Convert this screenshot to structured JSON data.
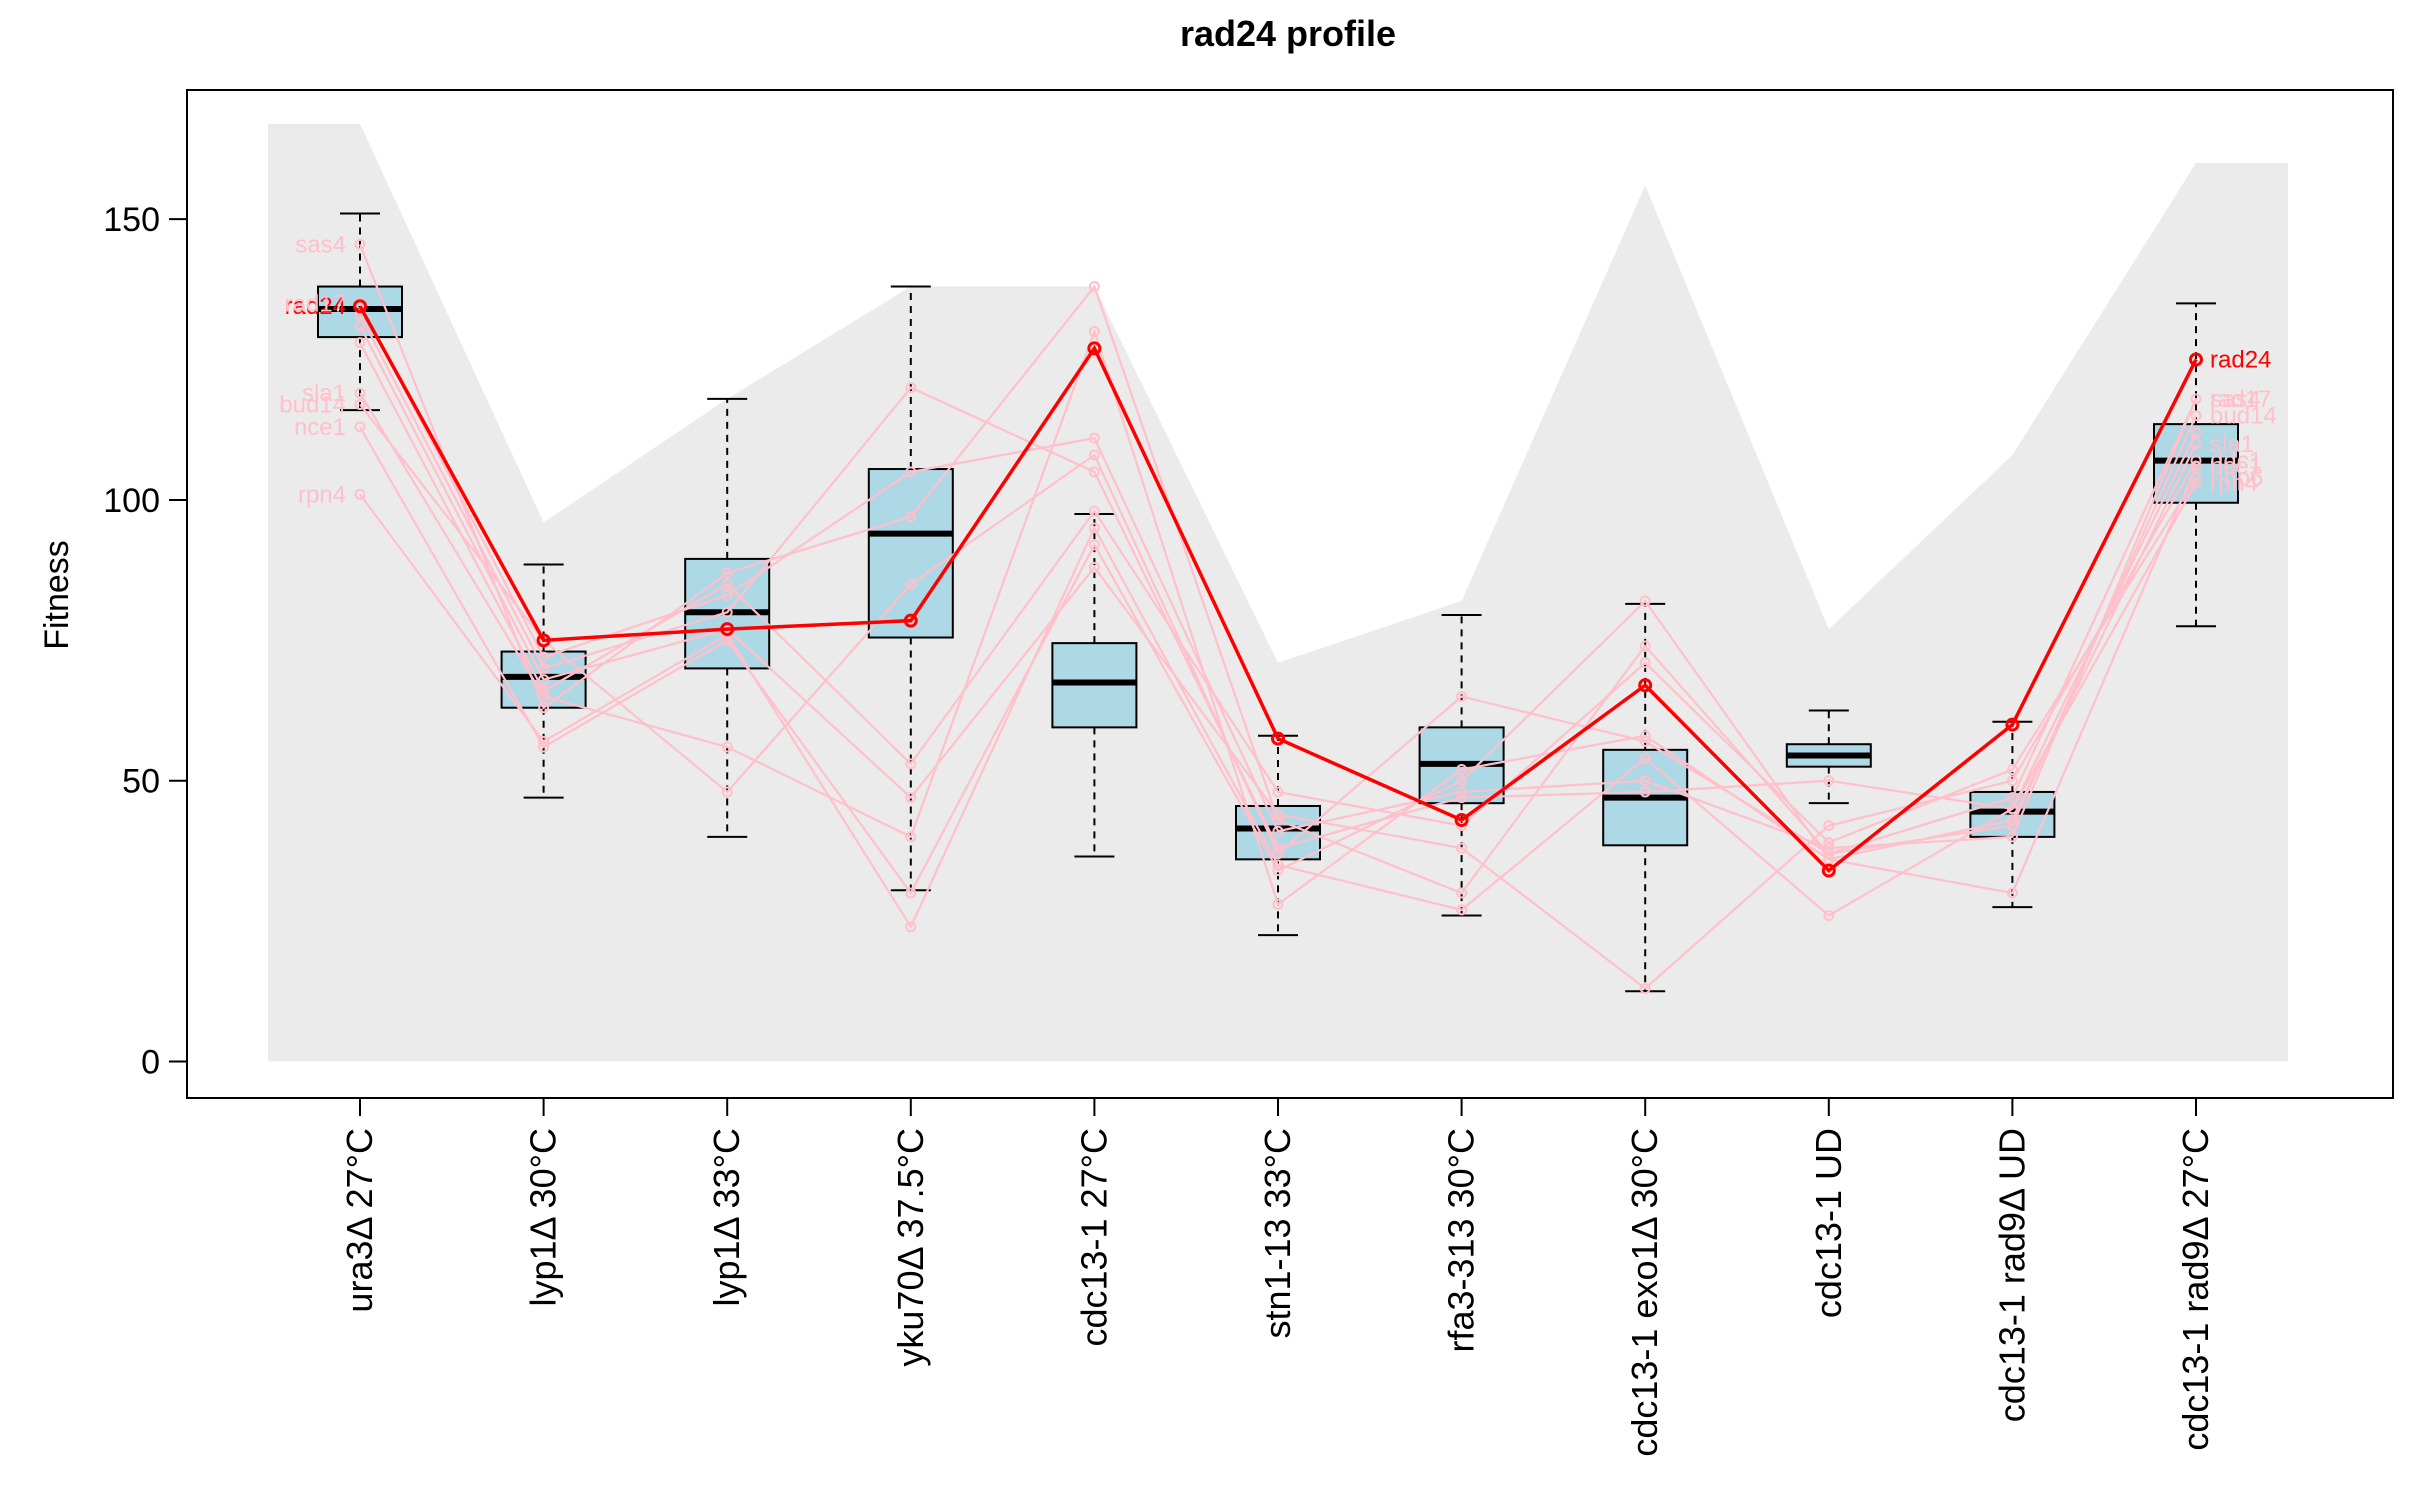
{
  "chart_data": {
    "type": "box",
    "title": "rad24 profile",
    "ylabel": "Fitness",
    "xlabel": "",
    "ylim": [
      -6.5,
      173
    ],
    "yticks": [
      0,
      50,
      100,
      150
    ],
    "categories": [
      "ura3Δ 27°C",
      "lyp1Δ 30°C",
      "lyp1Δ 33°C",
      "yku70Δ 37.5°C",
      "cdc13-1 27°C",
      "stn1-13 33°C",
      "rfa3-313 30°C",
      "cdc13-1 exo1Δ 30°C",
      "cdc13-1 UD",
      "cdc13-1 rad9Δ UD",
      "cdc13-1 rad9Δ 27°C"
    ],
    "envelope_max": [
      167,
      96,
      118,
      138,
      138,
      71,
      82,
      156,
      77,
      108,
      160
    ],
    "boxes": [
      {
        "whisker_low": 116,
        "q1": 129,
        "median": 134,
        "q3": 138,
        "whisker_high": 151
      },
      {
        "whisker_low": 47,
        "q1": 63,
        "median": 68.5,
        "q3": 73,
        "whisker_high": 88.5
      },
      {
        "whisker_low": 40,
        "q1": 70,
        "median": 80,
        "q3": 89.5,
        "whisker_high": 118
      },
      {
        "whisker_low": 30.5,
        "q1": 75.5,
        "median": 94,
        "q3": 105.5,
        "whisker_high": 138
      },
      {
        "whisker_low": 36.5,
        "q1": 59.5,
        "median": 67.5,
        "q3": 74.5,
        "whisker_high": 97.5
      },
      {
        "whisker_low": 22.5,
        "q1": 36,
        "median": 41.5,
        "q3": 45.5,
        "whisker_high": 58
      },
      {
        "whisker_low": 26,
        "q1": 46,
        "median": 53,
        "q3": 59.5,
        "whisker_high": 79.5
      },
      {
        "whisker_low": 12.5,
        "q1": 38.5,
        "median": 47,
        "q3": 55.5,
        "whisker_high": 81.5
      },
      {
        "whisker_low": 46,
        "q1": 52.5,
        "median": 54.5,
        "q3": 56.5,
        "whisker_high": 62.5
      },
      {
        "whisker_low": 27.5,
        "q1": 40,
        "median": 44.5,
        "q3": 48,
        "whisker_high": 60.5
      },
      {
        "whisker_low": 77.5,
        "q1": 99.5,
        "median": 107,
        "q3": 113.5,
        "whisker_high": 135
      }
    ],
    "highlight": {
      "name": "rad24",
      "color": "#ff0000",
      "values": [
        134.5,
        75,
        77,
        78.5,
        127,
        57.5,
        43,
        67,
        34,
        60,
        125
      ]
    },
    "neighbors": {
      "color": "#ffc0cb",
      "series": [
        {
          "name": "sas4",
          "values": [
            145.5,
            63,
            87,
            97,
            138,
            43,
            30,
            74,
            37,
            47,
            118
          ]
        },
        {
          "name": "rad17",
          "values": [
            135,
            72,
            83,
            105,
            111,
            41,
            48,
            50,
            38,
            40,
            118
          ]
        },
        {
          "name": "rad17",
          "values": [
            133,
            70,
            80,
            120,
            105,
            38,
            47,
            48,
            50,
            45,
            112
          ]
        },
        {
          "name": "sla1",
          "values": [
            119,
            65,
            56,
            40,
            130,
            28,
            52,
            58,
            36,
            43,
            110
          ]
        },
        {
          "name": "bud14",
          "values": [
            117,
            75,
            48,
            85,
            108,
            37,
            65,
            57,
            37,
            42,
            115
          ]
        },
        {
          "name": "nce1",
          "values": [
            113,
            56,
            75,
            30,
            92,
            34,
            50,
            82,
            36,
            30,
            106
          ]
        },
        {
          "name": "rpn4",
          "values": [
            101,
            57,
            76,
            24,
            95,
            35,
            27,
            54,
            26,
            45,
            103
          ]
        },
        {
          "name": "ddc1",
          "values": [
            131,
            68,
            77,
            47,
            88,
            44,
            38,
            13,
            42,
            50,
            107
          ]
        },
        {
          "name": "nhp6",
          "values": [
            128,
            66,
            85,
            53,
            98,
            48,
            42,
            71,
            39,
            52,
            104
          ]
        }
      ]
    },
    "left_labels": [
      "sas4",
      "rad24",
      "rad17",
      "sla1",
      "bud14",
      "nce1",
      "rpn4"
    ],
    "right_labels": [
      "rad24",
      "ddc1",
      "sas4",
      "rad17",
      "bud14",
      "nhp6",
      "sla1",
      "nce1",
      "rpn4"
    ]
  }
}
